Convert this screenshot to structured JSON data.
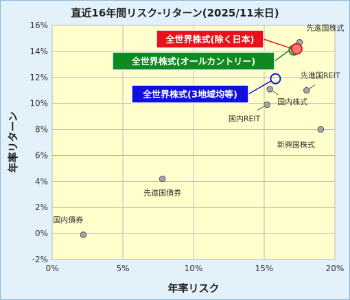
{
  "chart_data": {
    "type": "scatter",
    "title": "直近16年間リスク-リターン(2025/11末日)",
    "xlabel": "年率リスク",
    "ylabel": "年率リターン",
    "xlim": [
      0,
      20
    ],
    "ylim": [
      -2,
      16
    ],
    "x_ticks": [
      "0%",
      "5%",
      "10%",
      "15%",
      "20%"
    ],
    "y_ticks": [
      "-2%",
      "0%",
      "2%",
      "4%",
      "6%",
      "8%",
      "10%",
      "12%",
      "14%",
      "16%"
    ],
    "grid": true,
    "points": [
      {
        "label": "国内債券",
        "x": 2.2,
        "y": -0.1
      },
      {
        "label": "先進国債券",
        "x": 7.8,
        "y": 4.2
      },
      {
        "label": "国内REIT",
        "x": 15.2,
        "y": 9.9
      },
      {
        "label": "国内株式",
        "x": 15.4,
        "y": 11.1
      },
      {
        "label": "先進国REIT",
        "x": 18.0,
        "y": 11.0
      },
      {
        "label": "新興国株式",
        "x": 19.0,
        "y": 8.0
      },
      {
        "label": "先進国株式",
        "x": 17.5,
        "y": 14.7
      }
    ],
    "highlights": [
      {
        "label": "全世界株式(除く日本)",
        "x": 17.3,
        "y": 14.2,
        "color": "#e8121a"
      },
      {
        "label": "全世界株式(オールカントリー)",
        "x": 17.1,
        "y": 14.1,
        "color": "#0e8a20"
      },
      {
        "label": "全世界株式(3地域均等)",
        "x": 15.8,
        "y": 11.9,
        "color": "#1010e0"
      }
    ]
  }
}
